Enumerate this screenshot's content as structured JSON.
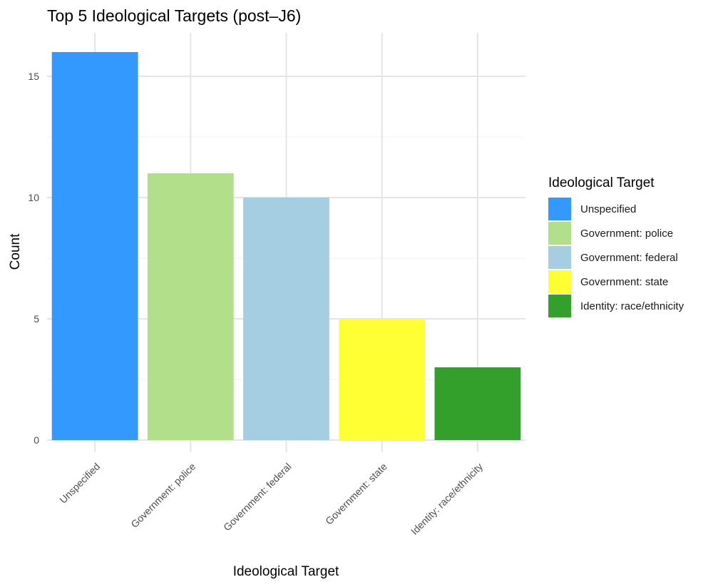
{
  "chart_data": {
    "type": "bar",
    "title": "Top 5 Ideological Targets (post–J6)",
    "xlabel": "Ideological Target",
    "ylabel": "Count",
    "categories": [
      "Unspecified",
      "Government: police",
      "Government: federal",
      "Government: state",
      "Identity: race/ethnicity"
    ],
    "values": [
      16,
      11,
      10,
      5,
      3
    ],
    "colors": [
      "#3399ff",
      "#b2df8a",
      "#a6cee3",
      "#ffff33",
      "#33a02c"
    ],
    "ylim": [
      0,
      16.8
    ],
    "yticks": [
      0,
      5,
      10,
      15
    ],
    "ytick_labels": [
      "0",
      "5",
      "10",
      "15"
    ],
    "grid": true,
    "legend": {
      "title": "Ideological Target",
      "placement": "right",
      "items": [
        "Unspecified",
        "Government: police",
        "Government: federal",
        "Government: state",
        "Identity: race/ethnicity"
      ]
    }
  }
}
